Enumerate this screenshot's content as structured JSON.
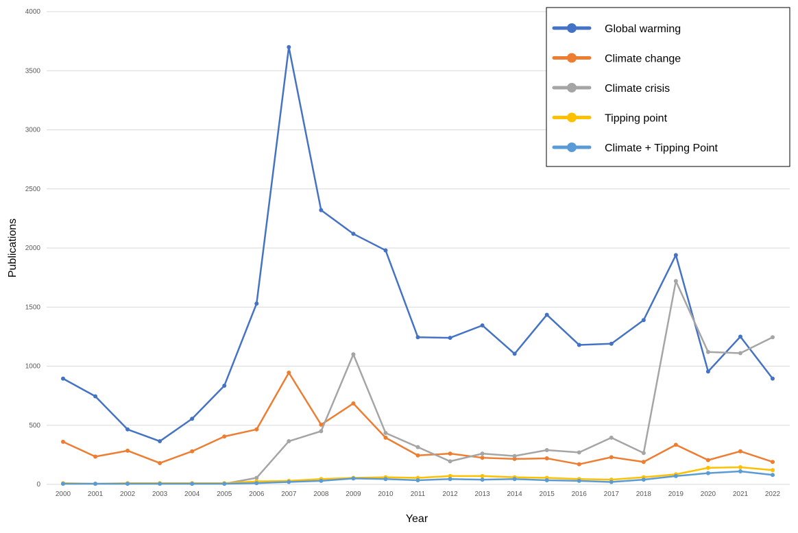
{
  "chart_data": {
    "type": "line",
    "title": "",
    "xlabel": "Year",
    "ylabel": "Publications",
    "ylim": [
      0,
      4000
    ],
    "yticks": [
      0,
      500,
      1000,
      1500,
      2000,
      2500,
      3000,
      3500,
      4000
    ],
    "grid": true,
    "legend_position": "top-right",
    "categories": [
      "2000",
      "2001",
      "2002",
      "2003",
      "2004",
      "2005",
      "2006",
      "2007",
      "2008",
      "2009",
      "2010",
      "2011",
      "2012",
      "2013",
      "2014",
      "2015",
      "2016",
      "2017",
      "2018",
      "2019",
      "2020",
      "2021",
      "2022"
    ],
    "series": [
      {
        "name": "Global warming",
        "color": "#4472C4",
        "values": [
          895,
          745,
          465,
          365,
          555,
          835,
          1530,
          3700,
          2320,
          2120,
          1980,
          1245,
          1240,
          1345,
          1105,
          1435,
          1180,
          1190,
          1390,
          1940,
          955,
          1250,
          895
        ]
      },
      {
        "name": "Climate change",
        "color": "#ED7D31",
        "values": [
          360,
          235,
          285,
          180,
          280,
          405,
          465,
          945,
          505,
          685,
          395,
          245,
          260,
          225,
          215,
          220,
          170,
          230,
          190,
          335,
          205,
          280,
          190
        ]
      },
      {
        "name": "Climate crisis",
        "color": "#A5A5A5",
        "values": [
          5,
          5,
          5,
          5,
          5,
          5,
          55,
          365,
          450,
          1100,
          435,
          315,
          195,
          260,
          240,
          290,
          270,
          395,
          265,
          1720,
          1120,
          1110,
          1245
        ]
      },
      {
        "name": "Tipping point",
        "color": "#FFC000",
        "values": [
          10,
          5,
          10,
          10,
          10,
          10,
          25,
          30,
          45,
          55,
          60,
          55,
          70,
          70,
          60,
          55,
          45,
          40,
          60,
          85,
          140,
          145,
          120
        ]
      },
      {
        "name": "Climate + Tipping Point",
        "color": "#5B9BD5",
        "values": [
          5,
          5,
          5,
          5,
          5,
          5,
          10,
          20,
          30,
          50,
          45,
          35,
          45,
          40,
          45,
          35,
          30,
          20,
          40,
          70,
          95,
          110,
          80
        ]
      }
    ]
  }
}
